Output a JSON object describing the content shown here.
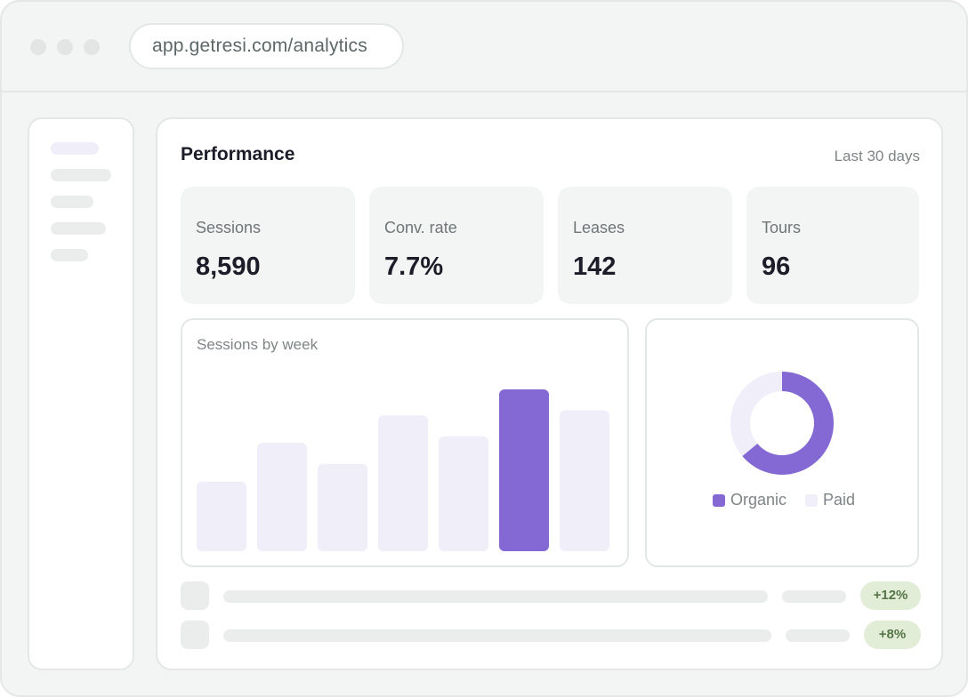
{
  "browser": {
    "url": "app.getresi.com/analytics"
  },
  "header": {
    "title": "Performance",
    "range": "Last 30 days"
  },
  "stats": [
    {
      "label": "Sessions",
      "value": "8,590"
    },
    {
      "label": "Conv. rate",
      "value": "7.7%"
    },
    {
      "label": "Leases",
      "value": "142"
    },
    {
      "label": "Tours",
      "value": "96"
    }
  ],
  "colors": {
    "accent": "#8469d4",
    "accent_light": "#f0eef8",
    "badge_bg": "#e2edd8",
    "badge_text": "#557548"
  },
  "chart_data": [
    {
      "type": "bar",
      "title": "Sessions by week",
      "categories": [
        "",
        "",
        "",
        "",
        "",
        "",
        ""
      ],
      "values": [
        0.43,
        0.67,
        0.54,
        0.84,
        0.71,
        1.0,
        0.87
      ],
      "highlight_index": 5
    },
    {
      "type": "pie",
      "labels": [
        "Organic",
        "Paid"
      ],
      "values": [
        64,
        36
      ],
      "colors": [
        "#8469d4",
        "#f0eef8"
      ]
    }
  ],
  "rows": [
    {
      "badge": "+12%"
    },
    {
      "badge": "+8%"
    }
  ]
}
